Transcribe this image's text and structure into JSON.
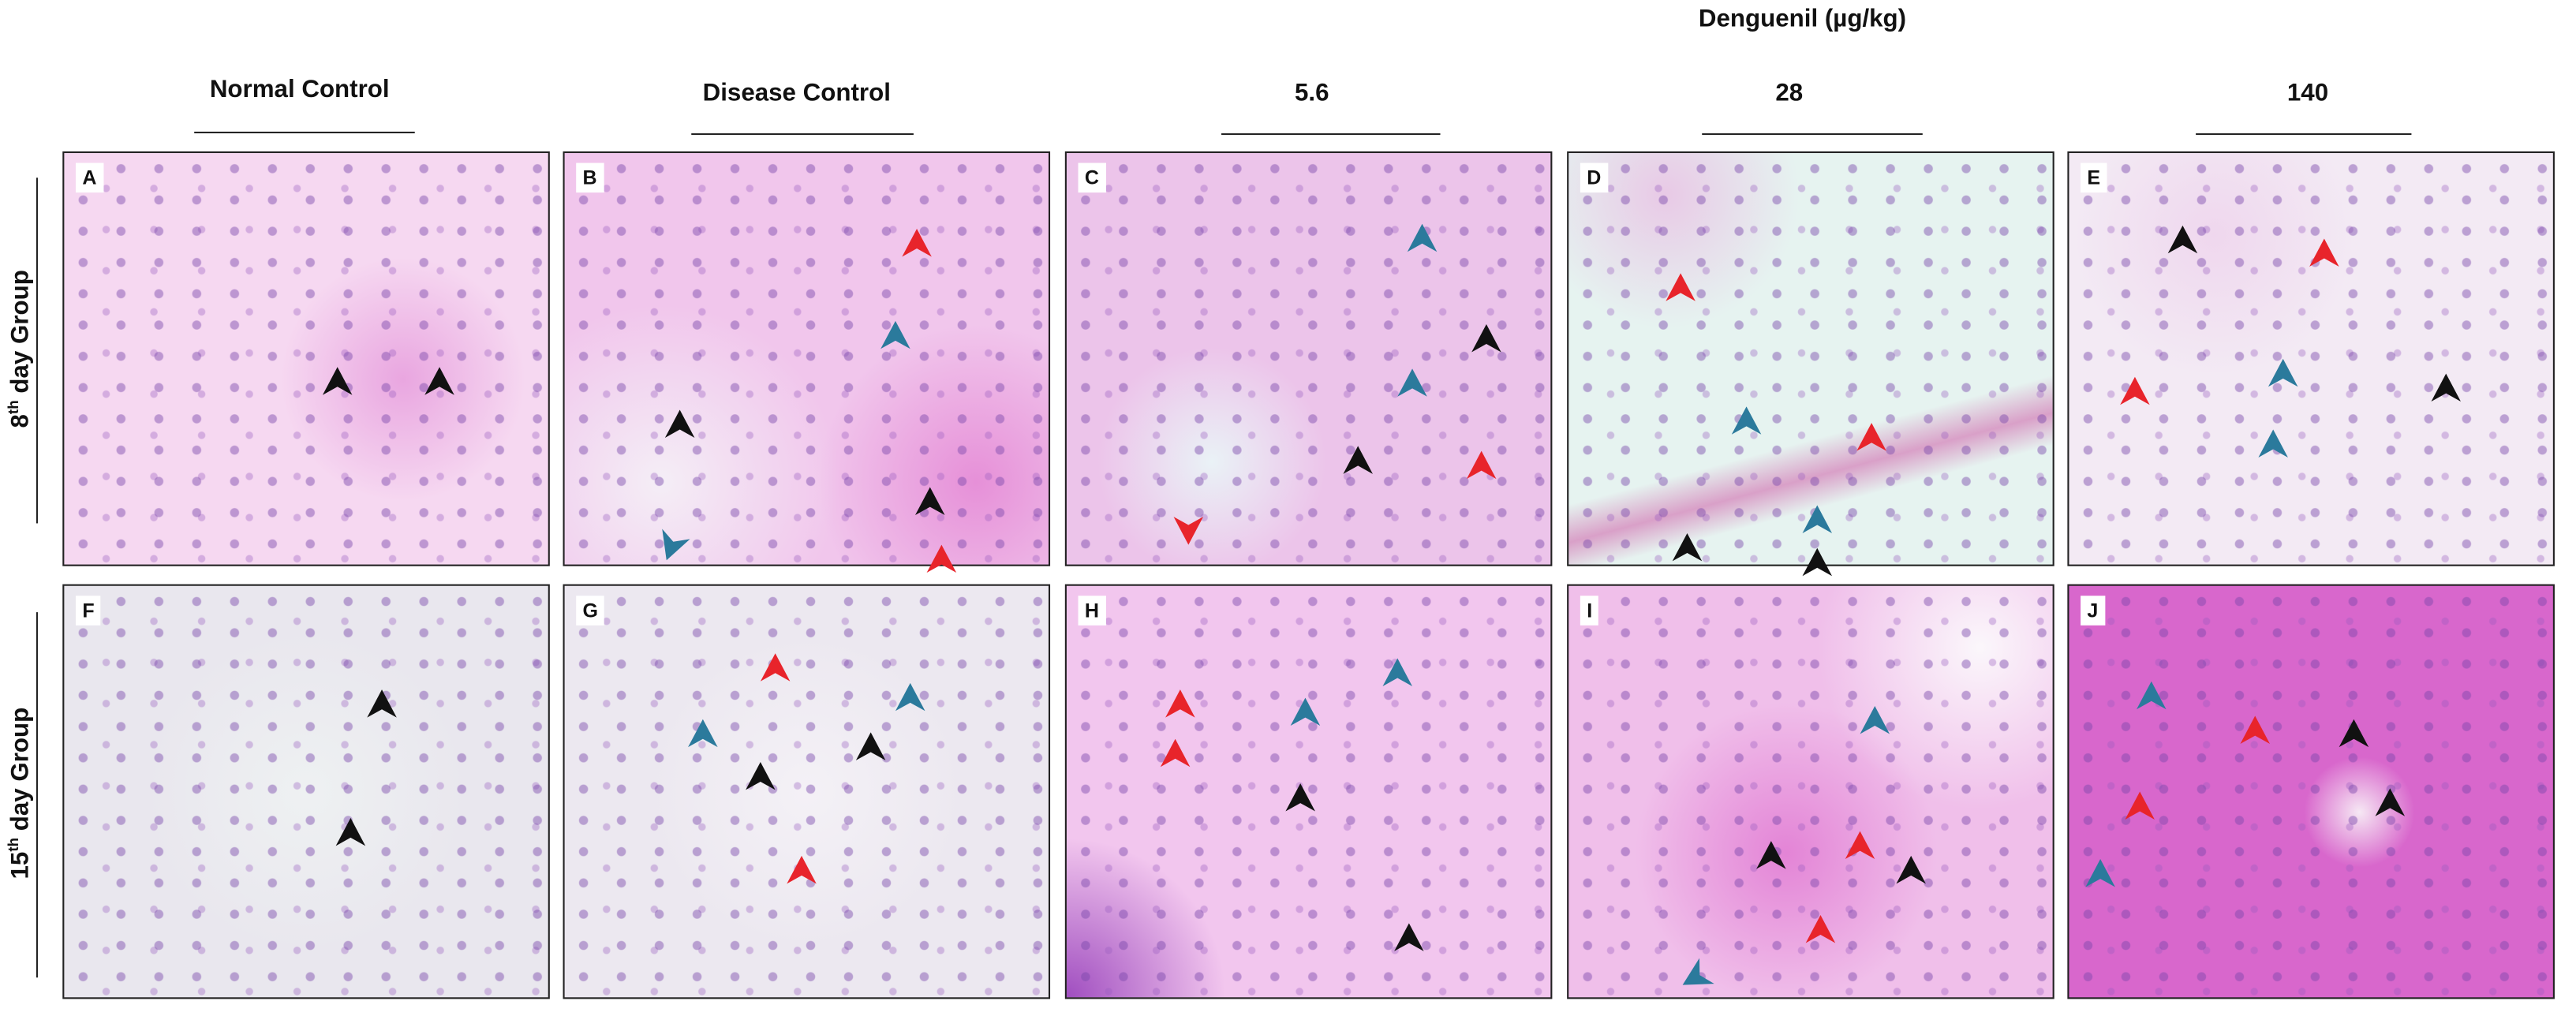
{
  "header": {
    "group_label": "Denguenil  (µg/kg)"
  },
  "columns": [
    "Normal Control",
    "Disease Control",
    "5.6",
    "28",
    "140"
  ],
  "rows": [
    {
      "number": "8",
      "suffix": "th",
      "text": " day Group"
    },
    {
      "number": "15",
      "suffix": "th",
      "text": " day Group"
    }
  ],
  "panels": [
    "A",
    "B",
    "C",
    "D",
    "E",
    "F",
    "G",
    "H",
    "I",
    "J"
  ]
}
